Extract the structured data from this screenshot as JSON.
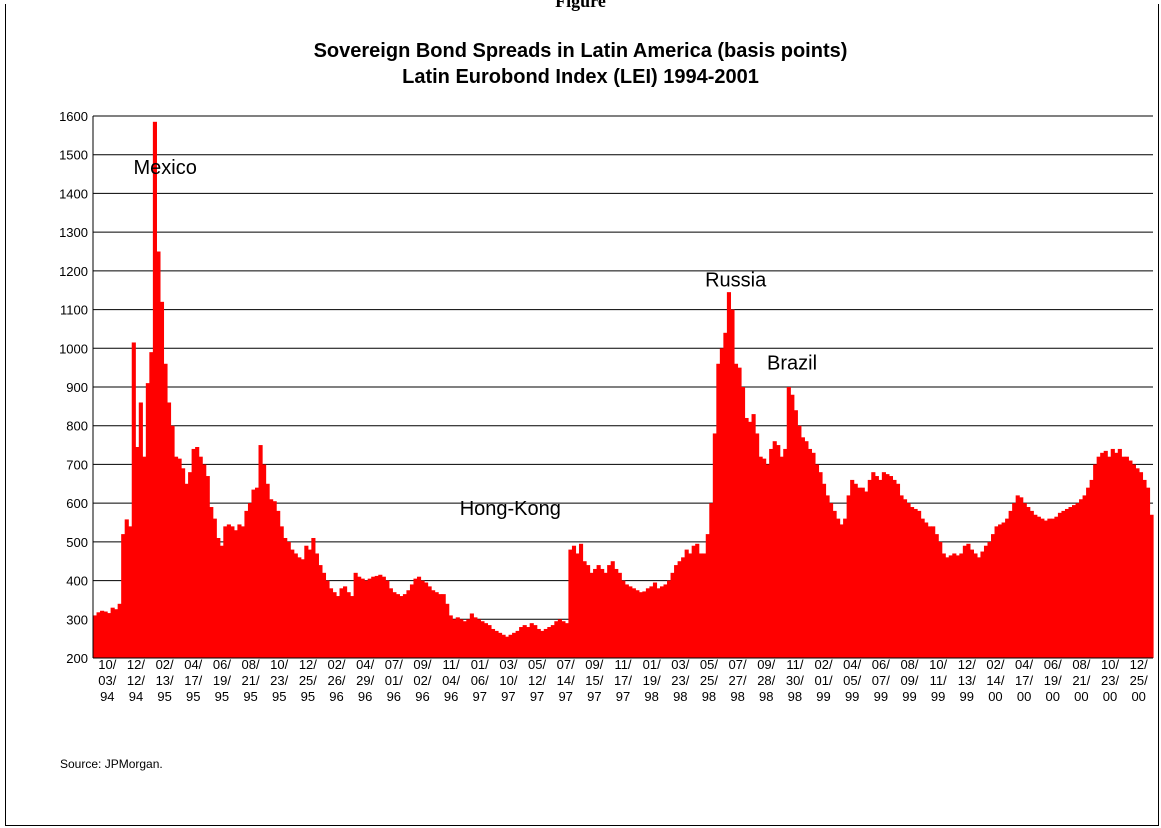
{
  "page": {
    "header_fragment": "Figure",
    "source": "Source: JPMorgan."
  },
  "chart_data": {
    "type": "area",
    "title": "Sovereign Bond Spreads in Latin America (basis points)",
    "subtitle": "Latin Eurobond Index (LEI) 1994-2001",
    "xlabel": "",
    "ylabel": "",
    "ylim": [
      200,
      1600
    ],
    "yticks": [
      200,
      300,
      400,
      500,
      600,
      700,
      800,
      900,
      1000,
      1100,
      1200,
      1300,
      1400,
      1500,
      1600
    ],
    "grid": true,
    "legend": "none",
    "color": "#ff0000",
    "x_tick_labels": [
      [
        "10/",
        "03/",
        "94"
      ],
      [
        "12/",
        "12/",
        "94"
      ],
      [
        "02/",
        "13/",
        "95"
      ],
      [
        "04/",
        "17/",
        "95"
      ],
      [
        "06/",
        "19/",
        "95"
      ],
      [
        "08/",
        "21/",
        "95"
      ],
      [
        "10/",
        "23/",
        "95"
      ],
      [
        "12/",
        "25/",
        "95"
      ],
      [
        "02/",
        "26/",
        "96"
      ],
      [
        "04/",
        "29/",
        "96"
      ],
      [
        "07/",
        "01/",
        "96"
      ],
      [
        "09/",
        "02/",
        "96"
      ],
      [
        "11/",
        "04/",
        "96"
      ],
      [
        "01/",
        "06/",
        "97"
      ],
      [
        "03/",
        "10/",
        "97"
      ],
      [
        "05/",
        "12/",
        "97"
      ],
      [
        "07/",
        "14/",
        "97"
      ],
      [
        "09/",
        "15/",
        "97"
      ],
      [
        "11/",
        "17/",
        "97"
      ],
      [
        "01/",
        "19/",
        "98"
      ],
      [
        "03/",
        "23/",
        "98"
      ],
      [
        "05/",
        "25/",
        "98"
      ],
      [
        "07/",
        "27/",
        "98"
      ],
      [
        "09/",
        "28/",
        "98"
      ],
      [
        "11/",
        "30/",
        "98"
      ],
      [
        "02/",
        "01/",
        "99"
      ],
      [
        "04/",
        "05/",
        "99"
      ],
      [
        "06/",
        "07/",
        "99"
      ],
      [
        "08/",
        "09/",
        "99"
      ],
      [
        "10/",
        "11/",
        "99"
      ],
      [
        "12/",
        "13/",
        "99"
      ],
      [
        "02/",
        "14/",
        "00"
      ],
      [
        "04/",
        "17/",
        "00"
      ],
      [
        "06/",
        "19/",
        "00"
      ],
      [
        "08/",
        "21/",
        "00"
      ],
      [
        "10/",
        "23/",
        "00"
      ],
      [
        "12/",
        "25/",
        "00"
      ]
    ],
    "values": [
      310,
      318,
      322,
      320,
      316,
      330,
      326,
      340,
      520,
      558,
      540,
      1015,
      745,
      860,
      720,
      910,
      990,
      1585,
      1250,
      1120,
      960,
      860,
      800,
      720,
      715,
      690,
      650,
      680,
      740,
      745,
      720,
      700,
      670,
      590,
      560,
      510,
      490,
      540,
      545,
      540,
      530,
      545,
      540,
      580,
      600,
      635,
      640,
      750,
      700,
      650,
      610,
      605,
      580,
      540,
      510,
      500,
      480,
      470,
      460,
      455,
      490,
      480,
      510,
      470,
      440,
      420,
      400,
      380,
      370,
      360,
      380,
      385,
      370,
      360,
      420,
      410,
      405,
      400,
      405,
      410,
      412,
      415,
      410,
      400,
      380,
      370,
      365,
      360,
      365,
      375,
      390,
      405,
      410,
      400,
      395,
      385,
      375,
      370,
      365,
      365,
      340,
      310,
      300,
      305,
      300,
      295,
      300,
      315,
      305,
      300,
      295,
      290,
      285,
      275,
      270,
      265,
      260,
      255,
      260,
      265,
      270,
      280,
      285,
      280,
      290,
      285,
      275,
      270,
      275,
      280,
      285,
      295,
      300,
      295,
      290,
      480,
      490,
      470,
      495,
      450,
      440,
      420,
      430,
      440,
      430,
      420,
      440,
      450,
      430,
      420,
      400,
      390,
      385,
      380,
      375,
      370,
      372,
      380,
      385,
      395,
      380,
      385,
      390,
      400,
      420,
      440,
      450,
      460,
      480,
      470,
      490,
      495,
      470,
      470,
      520,
      600,
      780,
      960,
      1000,
      1040,
      1145,
      1100,
      960,
      950,
      900,
      820,
      810,
      830,
      780,
      720,
      715,
      700,
      740,
      760,
      750,
      720,
      740,
      900,
      880,
      840,
      800,
      770,
      760,
      740,
      730,
      700,
      680,
      650,
      620,
      600,
      580,
      560,
      545,
      560,
      620,
      660,
      650,
      640,
      640,
      630,
      660,
      680,
      670,
      660,
      680,
      675,
      670,
      660,
      650,
      620,
      610,
      600,
      590,
      585,
      580,
      560,
      550,
      540,
      540,
      520,
      500,
      470,
      460,
      465,
      470,
      465,
      470,
      490,
      495,
      480,
      470,
      460,
      475,
      490,
      500,
      520,
      540,
      545,
      550,
      560,
      580,
      600,
      620,
      615,
      600,
      590,
      580,
      570,
      565,
      560,
      555,
      560,
      560,
      565,
      575,
      580,
      585,
      590,
      595,
      600,
      610,
      620,
      640,
      660,
      700,
      720,
      730,
      735,
      720,
      740,
      730,
      740,
      720,
      720,
      710,
      700,
      690,
      680,
      660,
      640,
      570
    ],
    "annotations": [
      {
        "text": "Mexico",
        "x_index": 20,
        "y": 1450
      },
      {
        "text": "Hong-Kong",
        "x_index": 118,
        "y": 570
      },
      {
        "text": "Russia",
        "x_index": 182,
        "y": 1160
      },
      {
        "text": "Brazil",
        "x_index": 198,
        "y": 945
      }
    ]
  }
}
